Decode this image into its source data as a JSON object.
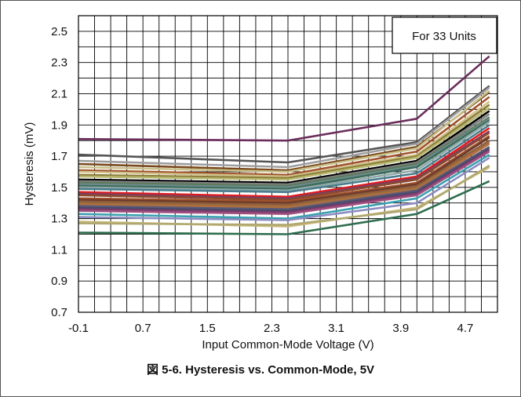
{
  "caption": "図 5-6. Hysteresis vs. Common-Mode, 5V",
  "chart_data": {
    "type": "line",
    "title": "",
    "xlabel": "Input Common-Mode Voltage (V)",
    "ylabel": "Hysteresis (mV)",
    "xlim": [
      -0.1,
      5.1
    ],
    "ylim": [
      0.7,
      2.6
    ],
    "x_ticks": [
      "-0.1",
      "0.7",
      "1.5",
      "2.3",
      "3.1",
      "3.9",
      "4.7"
    ],
    "y_ticks": [
      "0.7",
      "0.9",
      "1.1",
      "1.3",
      "1.5",
      "1.7",
      "1.9",
      "2.1",
      "2.3",
      "2.5"
    ],
    "x_tick_values": [
      -0.1,
      0.7,
      1.5,
      2.3,
      3.1,
      3.9,
      4.7
    ],
    "y_tick_values": [
      0.7,
      0.9,
      1.1,
      1.3,
      1.5,
      1.7,
      1.9,
      2.1,
      2.3,
      2.5
    ],
    "grid": true,
    "annotation": "For 33 Units",
    "x": [
      -0.1,
      2.5,
      4.1,
      5.0
    ],
    "series": [
      {
        "color": "#6b2d5c",
        "values": [
          1.81,
          1.8,
          1.94,
          2.34
        ]
      },
      {
        "color": "#555555",
        "values": [
          1.71,
          1.66,
          1.79,
          2.15
        ]
      },
      {
        "color": "#9e9e9e",
        "values": [
          1.67,
          1.63,
          1.78,
          2.14
        ]
      },
      {
        "color": "#7a4a1e",
        "values": [
          1.65,
          1.61,
          1.76,
          2.11
        ]
      },
      {
        "color": "#c9c08a",
        "values": [
          1.63,
          1.6,
          1.75,
          2.12
        ]
      },
      {
        "color": "#a0522d",
        "values": [
          1.61,
          1.58,
          1.73,
          2.08
        ]
      },
      {
        "color": "#d2c28a",
        "values": [
          1.6,
          1.57,
          1.71,
          2.05
        ]
      },
      {
        "color": "#8b7d3a",
        "values": [
          1.58,
          1.56,
          1.7,
          2.03
        ]
      },
      {
        "color": "#b8b870",
        "values": [
          1.57,
          1.55,
          1.69,
          2.01
        ]
      },
      {
        "color": "#000000",
        "values": [
          1.55,
          1.53,
          1.67,
          1.99
        ]
      },
      {
        "color": "#7f7f7f",
        "values": [
          1.54,
          1.52,
          1.66,
          1.97
        ]
      },
      {
        "color": "#5c7a5c",
        "values": [
          1.53,
          1.51,
          1.65,
          1.95
        ]
      },
      {
        "color": "#6e8c8c",
        "values": [
          1.52,
          1.5,
          1.64,
          1.94
        ]
      },
      {
        "color": "#3d6b5a",
        "values": [
          1.51,
          1.49,
          1.63,
          1.93
        ]
      },
      {
        "color": "#8fa8a8",
        "values": [
          1.5,
          1.48,
          1.61,
          1.92
        ]
      },
      {
        "color": "#4a7c8c",
        "values": [
          1.49,
          1.47,
          1.59,
          1.9
        ]
      },
      {
        "color": "#e31a1c",
        "values": [
          1.47,
          1.44,
          1.57,
          1.88
        ]
      },
      {
        "color": "#7b3f5e",
        "values": [
          1.46,
          1.43,
          1.56,
          1.86
        ]
      },
      {
        "color": "#8c4a2f",
        "values": [
          1.45,
          1.42,
          1.55,
          1.85
        ]
      },
      {
        "color": "#a0522d",
        "values": [
          1.43,
          1.41,
          1.53,
          1.83
        ]
      },
      {
        "color": "#6b3a2a",
        "values": [
          1.42,
          1.4,
          1.52,
          1.82
        ]
      },
      {
        "color": "#8b5a3c",
        "values": [
          1.41,
          1.39,
          1.51,
          1.8
        ]
      },
      {
        "color": "#9c6b3c",
        "values": [
          1.4,
          1.38,
          1.5,
          1.79
        ]
      },
      {
        "color": "#b07040",
        "values": [
          1.39,
          1.37,
          1.49,
          1.78
        ]
      },
      {
        "color": "#5b5b7a",
        "values": [
          1.38,
          1.36,
          1.48,
          1.76
        ]
      },
      {
        "color": "#4a4a6b",
        "values": [
          1.37,
          1.35,
          1.47,
          1.75
        ]
      },
      {
        "color": "#7a3c6b",
        "values": [
          1.36,
          1.34,
          1.46,
          1.74
        ]
      },
      {
        "color": "#a05080",
        "values": [
          1.35,
          1.33,
          1.45,
          1.73
        ]
      },
      {
        "color": "#3ba0b0",
        "values": [
          1.33,
          1.3,
          1.43,
          1.71
        ]
      },
      {
        "color": "#8c8cc0",
        "values": [
          1.31,
          1.29,
          1.4,
          1.69
        ]
      },
      {
        "color": "#c8b87a",
        "values": [
          1.28,
          1.25,
          1.37,
          1.63
        ]
      },
      {
        "color": "#b0a870",
        "values": [
          1.27,
          1.26,
          1.36,
          1.64
        ]
      },
      {
        "color": "#2e6e4e",
        "values": [
          1.21,
          1.2,
          1.33,
          1.54
        ]
      }
    ]
  }
}
